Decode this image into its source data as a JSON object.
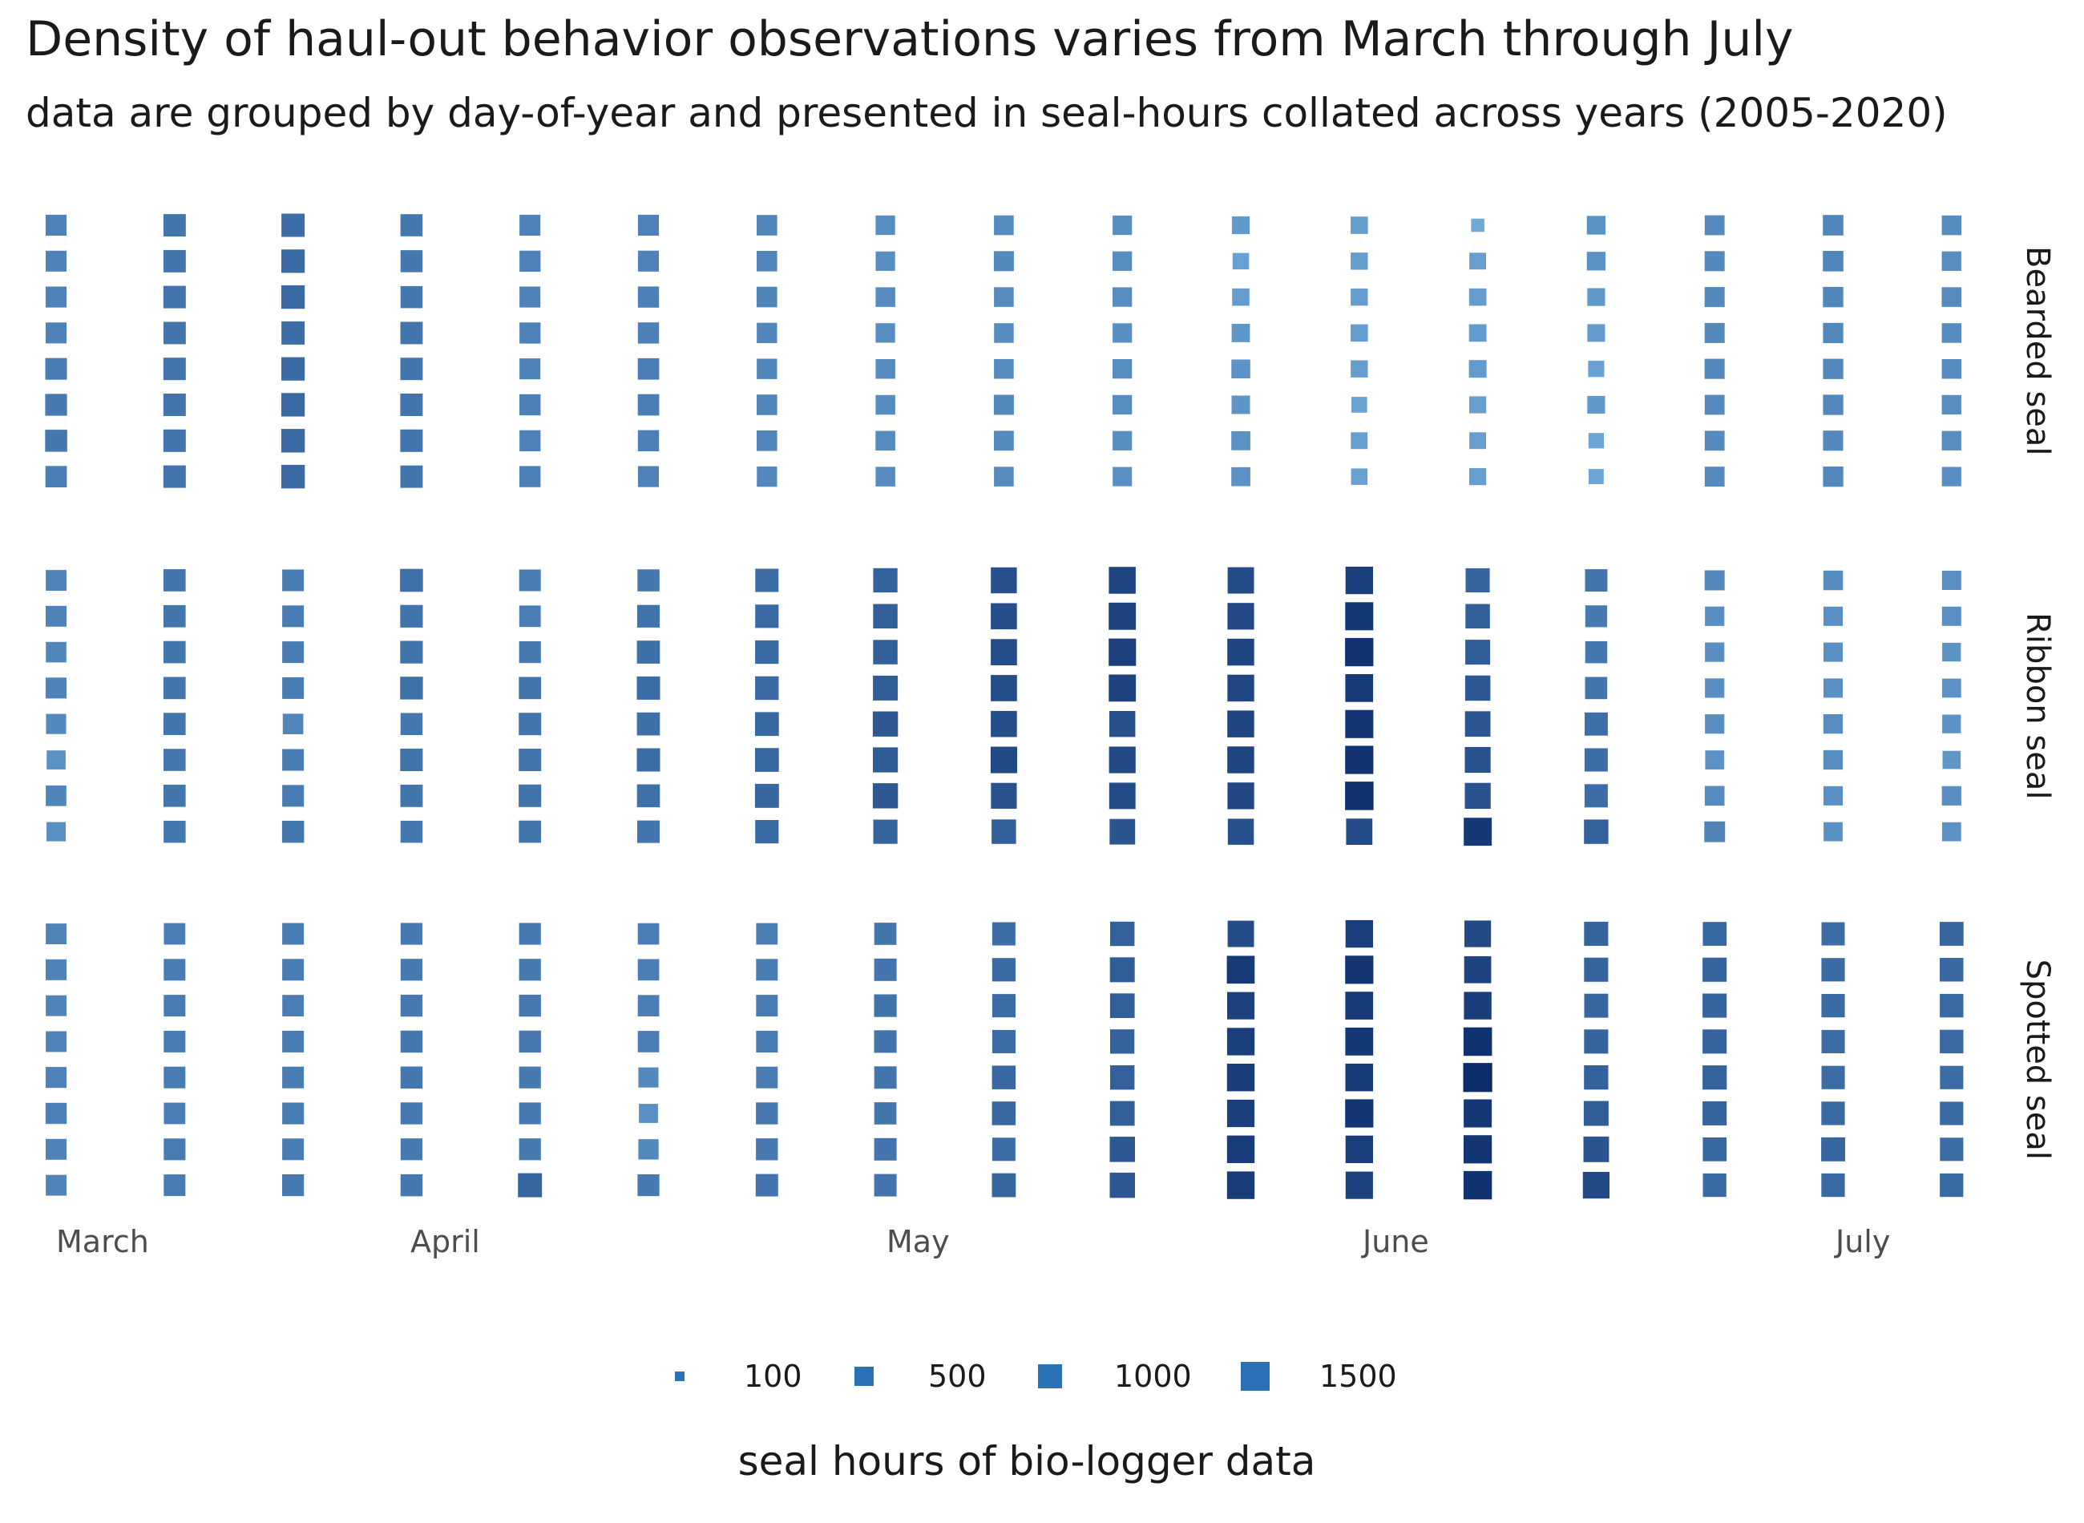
{
  "chart_data": {
    "type": "heatmap",
    "title": "Density of haul-out behavior observations varies from March through July",
    "subtitle": "data are grouped by day-of-year and presented in seal-hours collated across years (2005-2020)",
    "x_month_labels": [
      "March",
      "April",
      "May",
      "June",
      "July"
    ],
    "y_unlabeled_rows": 8,
    "size_legend": {
      "title": "seal hours of bio-logger data",
      "breaks": [
        100,
        500,
        1000,
        1500
      ]
    },
    "colors": {
      "low": "#6fa9d8",
      "mid": "#3e6fa8",
      "high": "#0c2c6b",
      "legend": "#2a72b5",
      "axis_text": "#4d4d4d"
    },
    "facets": [
      {
        "label": "Bearded seal",
        "seal_hours": [
          [
            560,
            690,
            780,
            670,
            560,
            560,
            520,
            440,
            460,
            430,
            320,
            290,
            110,
            380,
            470,
            520,
            450
          ],
          [
            550,
            690,
            800,
            660,
            570,
            560,
            520,
            430,
            480,
            440,
            240,
            280,
            260,
            380,
            480,
            520,
            440
          ],
          [
            560,
            700,
            810,
            660,
            560,
            580,
            530,
            450,
            460,
            440,
            290,
            280,
            290,
            320,
            480,
            510,
            460
          ],
          [
            560,
            690,
            780,
            690,
            570,
            580,
            510,
            440,
            450,
            430,
            350,
            290,
            300,
            310,
            480,
            500,
            450
          ],
          [
            620,
            700,
            800,
            690,
            560,
            600,
            510,
            450,
            460,
            440,
            390,
            280,
            310,
            230,
            490,
            500,
            450
          ],
          [
            640,
            700,
            810,
            700,
            580,
            600,
            520,
            450,
            480,
            440,
            360,
            210,
            270,
            320,
            470,
            500,
            440
          ],
          [
            660,
            700,
            820,
            700,
            570,
            580,
            520,
            460,
            470,
            430,
            400,
            260,
            260,
            190,
            470,
            490,
            440
          ],
          [
            600,
            700,
            820,
            690,
            580,
            560,
            500,
            450,
            460,
            420,
            400,
            240,
            270,
            180,
            470,
            500,
            430
          ]
        ]
      },
      {
        "label": "Ribbon seal",
        "seal_hours": [
          [
            540,
            680,
            620,
            750,
            620,
            660,
            780,
            900,
            1100,
            1220,
            1150,
            1300,
            880,
            690,
            480,
            450,
            420
          ],
          [
            550,
            680,
            620,
            720,
            610,
            720,
            800,
            920,
            1120,
            1260,
            1180,
            1380,
            920,
            640,
            430,
            420,
            420
          ],
          [
            520,
            680,
            620,
            720,
            640,
            760,
            810,
            920,
            1130,
            1280,
            1220,
            1420,
            960,
            660,
            430,
            420,
            380
          ],
          [
            560,
            680,
            620,
            730,
            680,
            780,
            820,
            960,
            1130,
            1250,
            1210,
            1350,
            1010,
            680,
            430,
            420,
            400
          ],
          [
            490,
            680,
            520,
            660,
            700,
            760,
            840,
            1000,
            1120,
            1100,
            1220,
            1390,
            1040,
            770,
            430,
            440,
            380
          ],
          [
            400,
            670,
            620,
            710,
            700,
            780,
            840,
            980,
            1170,
            1180,
            1220,
            1410,
            1080,
            780,
            400,
            440,
            340
          ],
          [
            530,
            680,
            630,
            690,
            710,
            750,
            860,
            1000,
            1080,
            1150,
            1190,
            1440,
            1090,
            780,
            460,
            420,
            430
          ],
          [
            420,
            660,
            660,
            660,
            680,
            700,
            800,
            890,
            920,
            1050,
            1110,
            1140,
            1370,
            910,
            540,
            410,
            400
          ]
        ]
      },
      {
        "label": "Spotted seal",
        "seal_hours": [
          [
            540,
            610,
            620,
            640,
            640,
            600,
            610,
            680,
            780,
            910,
            1150,
            1300,
            1180,
            880,
            840,
            780,
            850
          ],
          [
            550,
            620,
            620,
            640,
            640,
            600,
            620,
            700,
            800,
            960,
            1350,
            1400,
            1240,
            880,
            880,
            800,
            830
          ],
          [
            540,
            620,
            610,
            650,
            650,
            600,
            620,
            720,
            790,
            930,
            1280,
            1350,
            1310,
            860,
            880,
            800,
            820
          ],
          [
            540,
            620,
            620,
            660,
            650,
            600,
            630,
            710,
            790,
            900,
            1300,
            1360,
            1440,
            880,
            880,
            790,
            820
          ],
          [
            560,
            620,
            620,
            660,
            640,
            490,
            620,
            690,
            830,
            910,
            1310,
            1330,
            1520,
            900,
            890,
            790,
            790
          ],
          [
            580,
            610,
            630,
            650,
            640,
            410,
            650,
            680,
            830,
            940,
            1290,
            1400,
            1380,
            960,
            880,
            810,
            800
          ],
          [
            550,
            630,
            620,
            640,
            640,
            500,
            650,
            700,
            780,
            1010,
            1320,
            1300,
            1400,
            1050,
            840,
            860,
            790
          ],
          [
            540,
            620,
            640,
            660,
            870,
            640,
            700,
            700,
            850,
            1010,
            1320,
            1280,
            1430,
            1180,
            810,
            810,
            810
          ]
        ]
      }
    ]
  }
}
